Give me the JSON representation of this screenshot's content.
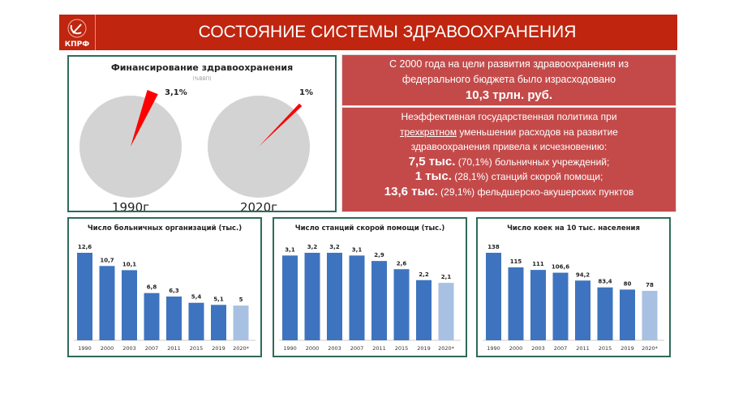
{
  "header": {
    "title": "СОСТОЯНИЕ СИСТЕМЫ ЗДРАВООХРАНЕНИЯ",
    "logo_text": "КПРФ"
  },
  "colors": {
    "brand_red": "#c0250f",
    "panel_red": "#c44a4a",
    "bar": "#3e74bf",
    "bar_estimate": "#a8c1e2",
    "pie_gray": "#d3d3d3",
    "slice_red": "#ff0000"
  },
  "chart_data": [
    {
      "type": "pie",
      "title": "Финансирование здравоохранения",
      "subtitle": "(%ВВП)",
      "pies": [
        {
          "label": "1990г",
          "value": 3.1,
          "value_label": "3,1%"
        },
        {
          "label": "2020г",
          "value": 1,
          "value_label": "1%"
        }
      ]
    },
    {
      "type": "bar",
      "title": "Число больничных организаций (тыс.)",
      "categories": [
        "1990",
        "2000",
        "2003",
        "2007",
        "2011",
        "2015",
        "2019",
        "2020*"
      ],
      "values": [
        12.6,
        10.7,
        10.1,
        6.8,
        6.3,
        5.4,
        5.1,
        5
      ],
      "labels": [
        "12,6",
        "10,7",
        "10,1",
        "6,8",
        "6,3",
        "5,4",
        "5,1",
        "5"
      ],
      "ylim": [
        0,
        12.6
      ]
    },
    {
      "type": "bar",
      "title": "Число станций скорой помощи (тыс.)",
      "categories": [
        "1990",
        "2000",
        "2003",
        "2007",
        "2011",
        "2015",
        "2019",
        "2020*"
      ],
      "values": [
        3.1,
        3.2,
        3.2,
        3.1,
        2.9,
        2.6,
        2.2,
        2.1
      ],
      "labels": [
        "3,1",
        "3,2",
        "3,2",
        "3,1",
        "2,9",
        "2,6",
        "2,2",
        "2,1"
      ],
      "ylim": [
        0,
        3.2
      ]
    },
    {
      "type": "bar",
      "title": "Число коек на 10 тыс. населения",
      "categories": [
        "1990",
        "2000",
        "2003",
        "2007",
        "2011",
        "2015",
        "2019",
        "2020*"
      ],
      "values": [
        138,
        115,
        111,
        106.6,
        94.2,
        83.4,
        80,
        78
      ],
      "labels": [
        "138",
        "115",
        "111",
        "106,6",
        "94,2",
        "83,4",
        "80",
        "78"
      ],
      "ylim": [
        0,
        138
      ]
    }
  ],
  "info": {
    "box1": {
      "line1": "С 2000 года на цели развития здравоохранения из",
      "line2": "федерального бюджета было израсходовано",
      "amount": "10,3 трлн. руб."
    },
    "box2": {
      "line1": "Неэффективная государственная политика при",
      "underlined": "трехкратном",
      "line2_rest": " уменьшении расходов на развитие",
      "line3": "здравоохранения привела к исчезновению:",
      "items": [
        {
          "amount": "7,5 тыс.",
          "pct": " (70,1%) ",
          "text": "больничных учреждений;"
        },
        {
          "amount": "1 тыс.",
          "pct": " (28,1%) ",
          "text": "станций скорой помощи;"
        },
        {
          "amount": "13,6 тыс.",
          "pct": " (29,1%) ",
          "text": "фельдшерско-акушерских пунктов"
        }
      ]
    }
  }
}
